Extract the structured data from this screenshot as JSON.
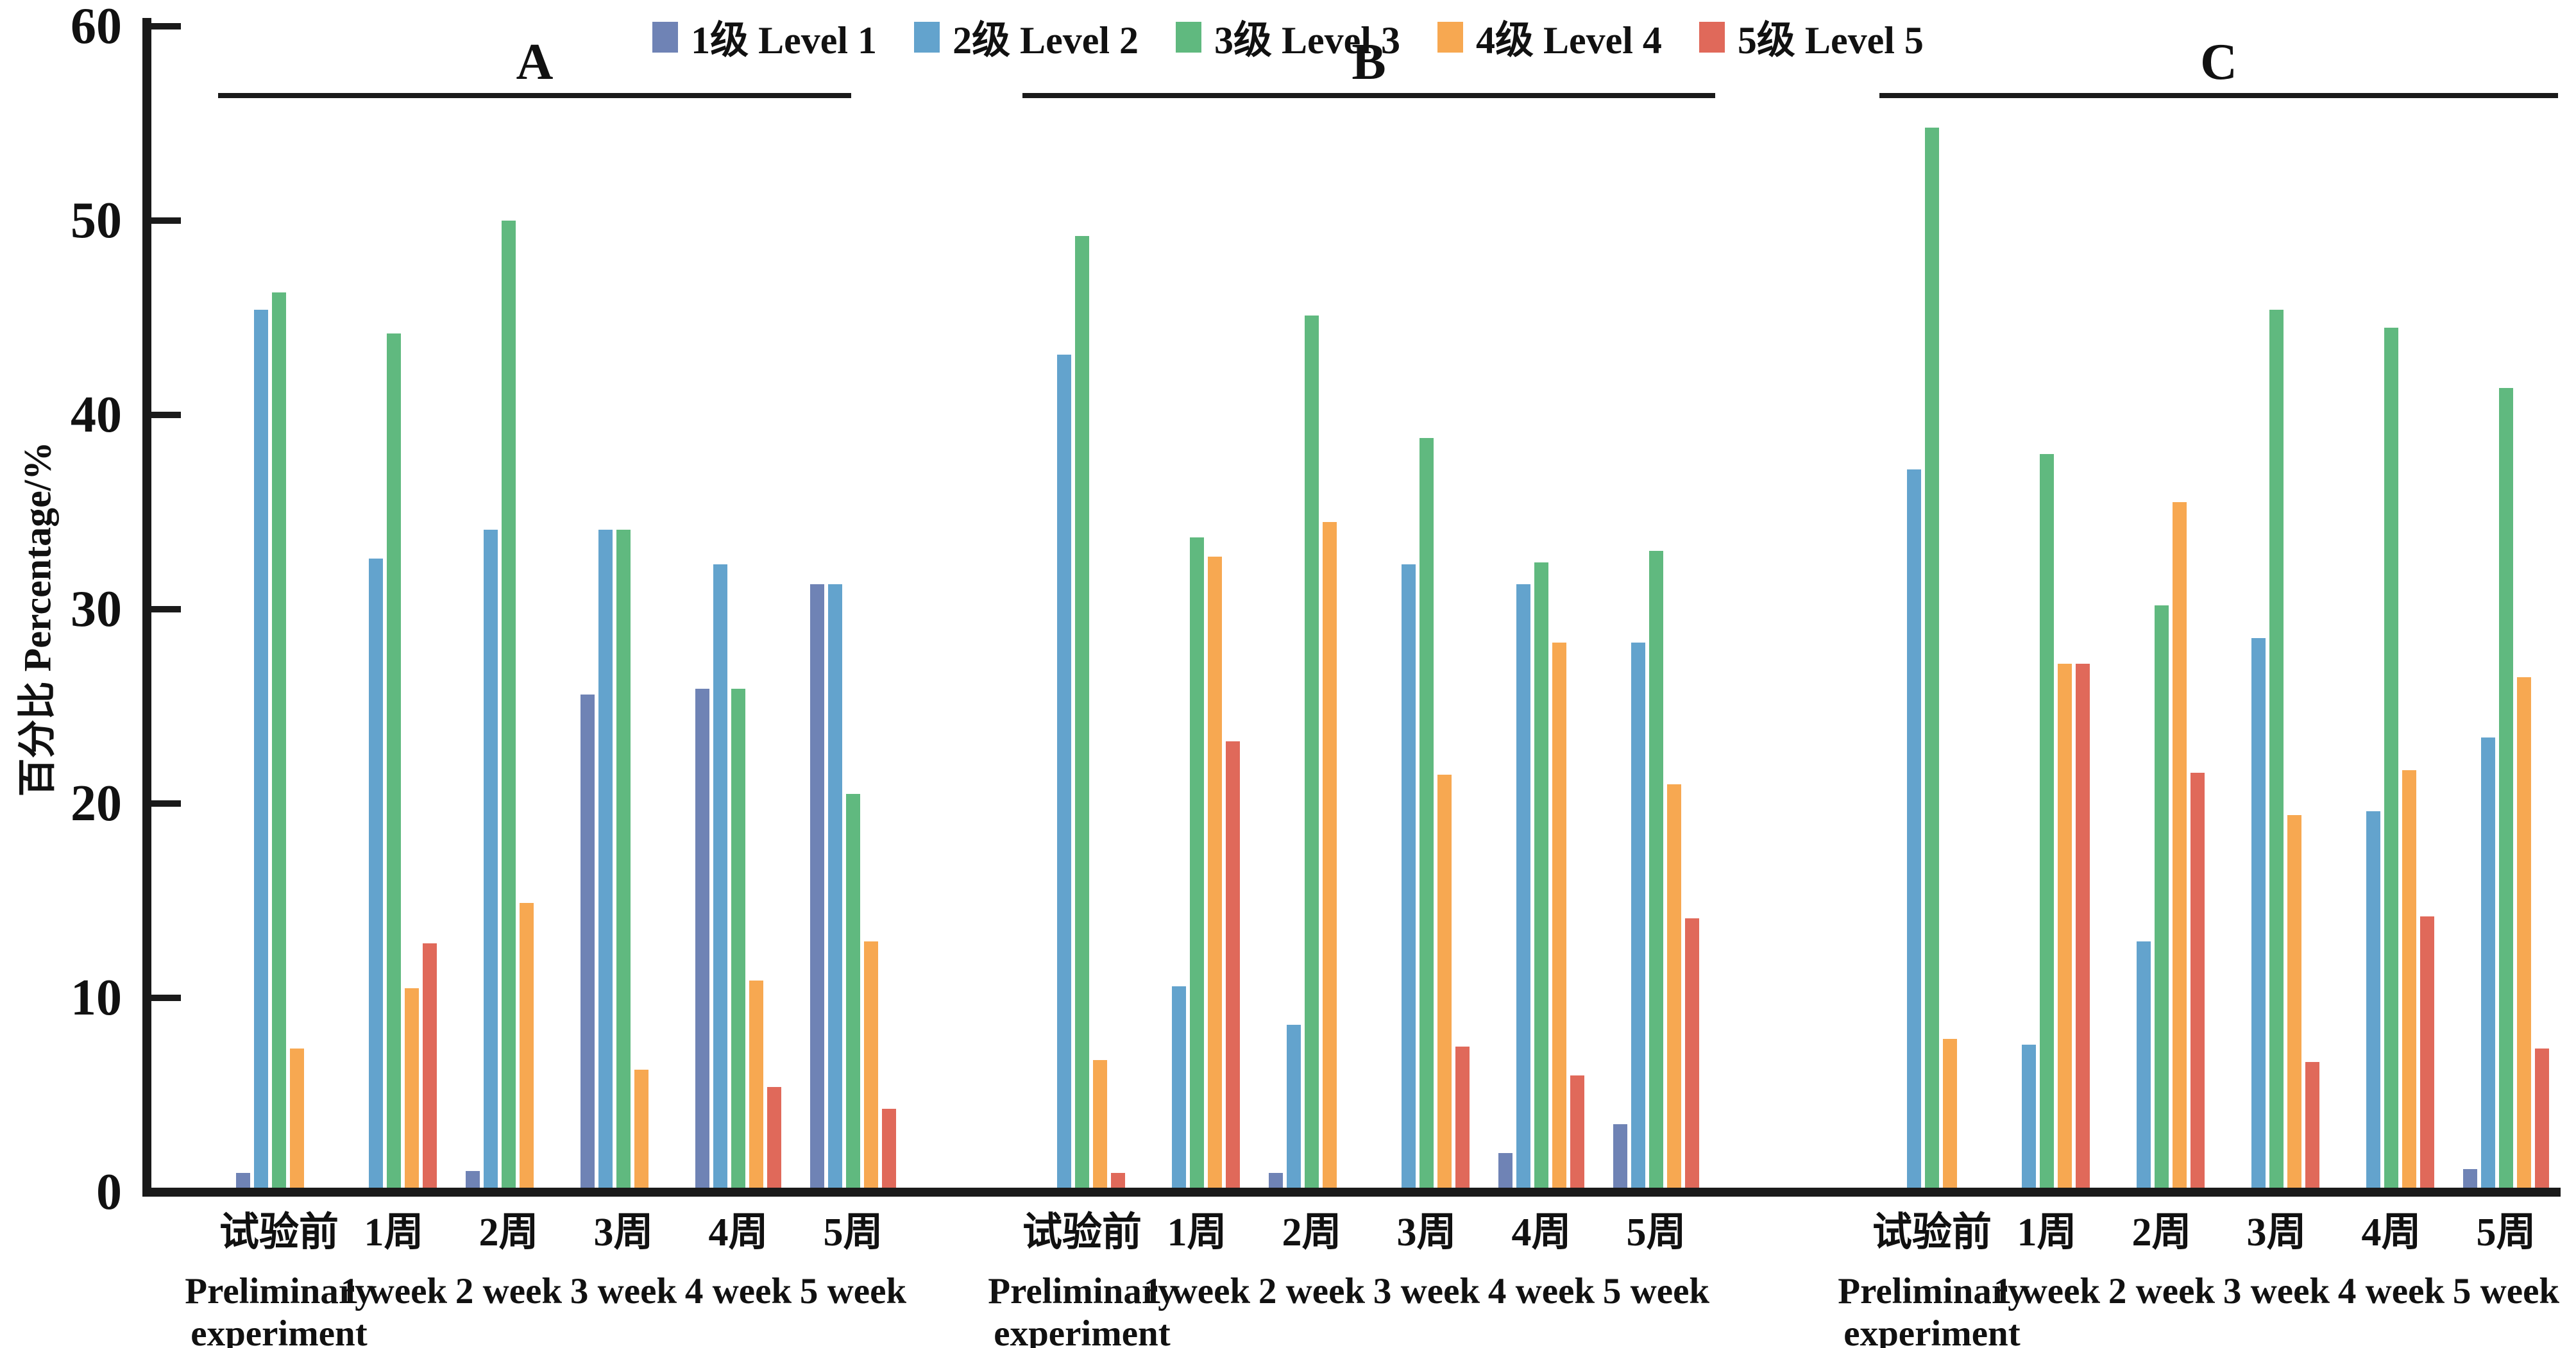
{
  "figure": {
    "background": "#ffffff",
    "axis_color": "#1a1a1a"
  },
  "chart_data": {
    "type": "bar",
    "title": "",
    "ylabel": "百分比 Percentage/%",
    "xlabel": "",
    "ylim": [
      0,
      60
    ],
    "yticks": [
      0,
      10,
      20,
      30,
      40,
      50,
      60
    ],
    "grid": false,
    "legend_position": "top-center",
    "series": [
      {
        "name": "1级 Level 1",
        "color": "#6f83b5"
      },
      {
        "name": "2级 Level 2",
        "color": "#63a3cd"
      },
      {
        "name": "3级 Level 3",
        "color": "#60b97f"
      },
      {
        "name": "4级 Level 4",
        "color": "#f7a851"
      },
      {
        "name": "5级 Level 5",
        "color": "#e0695a"
      }
    ],
    "categories_note": "values arrays are ordered Level1..Level5; 0 means no visible bar",
    "groups": [
      {
        "label": "A",
        "clusters": [
          {
            "zh": "试验前",
            "en": "Preliminary experiment",
            "values": [
              1.0,
              45.4,
              46.3,
              7.4,
              0
            ]
          },
          {
            "zh": "1周",
            "en": "1 week",
            "values": [
              0,
              32.6,
              44.2,
              10.5,
              12.8
            ]
          },
          {
            "zh": "2周",
            "en": "2 week",
            "values": [
              1.1,
              34.1,
              50.0,
              14.9,
              0
            ]
          },
          {
            "zh": "3周",
            "en": "3 week",
            "values": [
              25.6,
              34.1,
              34.1,
              6.3,
              0
            ]
          },
          {
            "zh": "4周",
            "en": "4 week",
            "values": [
              25.9,
              32.3,
              25.9,
              10.9,
              5.4
            ]
          },
          {
            "zh": "5周",
            "en": "5 week",
            "values": [
              31.3,
              31.3,
              20.5,
              12.9,
              4.3
            ]
          }
        ]
      },
      {
        "label": "B",
        "clusters": [
          {
            "zh": "试验前",
            "en": "Preliminary experiment",
            "values": [
              0,
              43.1,
              49.2,
              6.8,
              1.0
            ]
          },
          {
            "zh": "1周",
            "en": "1 week",
            "values": [
              0,
              10.6,
              33.7,
              32.7,
              23.2
            ]
          },
          {
            "zh": "2周",
            "en": "2 week",
            "values": [
              1.0,
              8.6,
              45.1,
              34.5,
              0
            ]
          },
          {
            "zh": "3周",
            "en": "3 week",
            "values": [
              0,
              32.3,
              38.8,
              21.5,
              7.5
            ]
          },
          {
            "zh": "4周",
            "en": "4 week",
            "values": [
              2.0,
              31.3,
              32.4,
              28.3,
              6.0
            ]
          },
          {
            "zh": "5周",
            "en": "5 week",
            "values": [
              3.5,
              28.3,
              33.0,
              21.0,
              14.1
            ]
          }
        ]
      },
      {
        "label": "C",
        "clusters": [
          {
            "zh": "试验前",
            "en": "Preliminary experiment",
            "values": [
              0,
              37.2,
              54.8,
              7.9,
              0
            ]
          },
          {
            "zh": "1周",
            "en": "1 week",
            "values": [
              0,
              7.6,
              38.0,
              27.2,
              27.2
            ]
          },
          {
            "zh": "2周",
            "en": "2 week",
            "values": [
              0,
              12.9,
              30.2,
              35.5,
              21.6
            ]
          },
          {
            "zh": "3周",
            "en": "3 week",
            "values": [
              0,
              28.5,
              45.4,
              19.4,
              6.7
            ]
          },
          {
            "zh": "4周",
            "en": "4 week",
            "values": [
              0,
              19.6,
              44.5,
              21.7,
              14.2
            ]
          },
          {
            "zh": "5周",
            "en": "5 week",
            "values": [
              1.2,
              23.4,
              41.4,
              26.5,
              7.4
            ]
          }
        ]
      }
    ]
  }
}
